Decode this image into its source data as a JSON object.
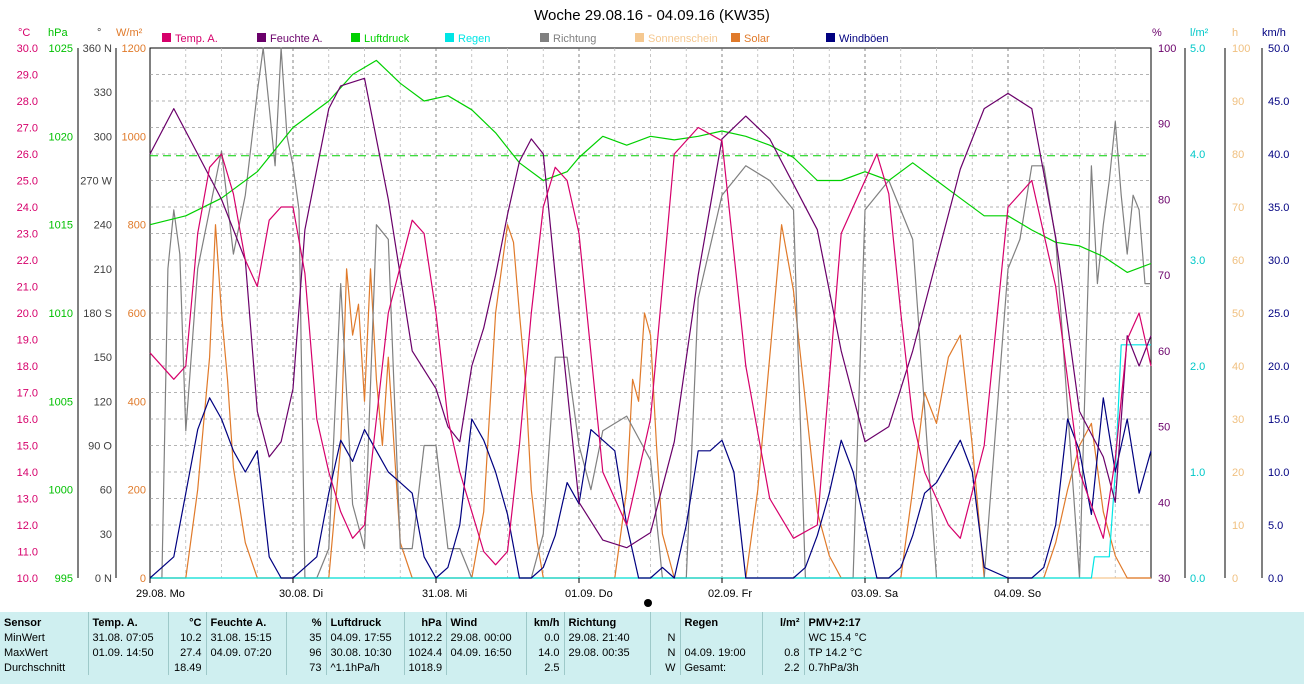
{
  "title": "Woche 29.08.16 - 04.09.16 (KW35)",
  "legend": [
    {
      "label": "Temp. A.",
      "color": "#d6006b"
    },
    {
      "label": "Feuchte A.",
      "color": "#6a006a"
    },
    {
      "label": "Luftdruck",
      "color": "#00d000"
    },
    {
      "label": "Regen",
      "color": "#00e5e5"
    },
    {
      "label": "Richtung",
      "color": "#808080"
    },
    {
      "label": "Sonnenschein",
      "color": "#f5c890"
    },
    {
      "label": "Solar",
      "color": "#e07a2a"
    },
    {
      "label": "Windböen",
      "color": "#000080"
    }
  ],
  "left_axes": [
    {
      "unit": "°C",
      "color": "#d6006b",
      "ticks": [
        "30.0",
        "29.0",
        "28.0",
        "27.0",
        "26.0",
        "25.0",
        "24.0",
        "23.0",
        "22.0",
        "21.0",
        "20.0",
        "19.0",
        "18.0",
        "17.0",
        "16.0",
        "15.0",
        "14.0",
        "13.0",
        "12.0",
        "11.0",
        "10.0"
      ]
    },
    {
      "unit": "hPa",
      "color": "#00c000",
      "ticks": [
        "1025",
        "1020",
        "1015",
        "1010",
        "1005",
        "1000",
        "995"
      ]
    },
    {
      "unit": "°",
      "color": "#404040",
      "ticks": [
        "360 N",
        "330",
        "300",
        "270 W",
        "240",
        "210",
        "180 S",
        "150",
        "120",
        "90 O",
        "60",
        "30",
        "0 N"
      ]
    },
    {
      "unit": "W/m²",
      "color": "#e07a2a",
      "ticks": [
        "1200",
        "1000",
        "800",
        "600",
        "400",
        "200",
        "0"
      ]
    }
  ],
  "right_axes": [
    {
      "unit": "%",
      "color": "#6a006a",
      "ticks": [
        "100",
        "90",
        "80",
        "70",
        "60",
        "50",
        "40",
        "30"
      ]
    },
    {
      "unit": "l/m²",
      "color": "#00c8c8",
      "ticks": [
        "5.0",
        "4.0",
        "3.0",
        "2.0",
        "1.0",
        "0.0"
      ]
    },
    {
      "unit": "h",
      "color": "#f0c080",
      "ticks": [
        "100",
        "90",
        "80",
        "70",
        "60",
        "50",
        "40",
        "30",
        "20",
        "10",
        "0"
      ]
    },
    {
      "unit": "km/h",
      "color": "#000080",
      "ticks": [
        "50.0",
        "45.0",
        "40.0",
        "35.0",
        "30.0",
        "25.0",
        "20.0",
        "15.0",
        "10.0",
        "5.0",
        "0.0"
      ]
    }
  ],
  "day_labels": [
    "29.08. Mo",
    "30.08. Di",
    "31.08. Mi",
    "01.09. Do",
    "02.09. Fr",
    "03.09. Sa",
    "04.09. So"
  ],
  "chart_data": {
    "type": "line",
    "x_unit": "hours since 29.08. 00:00",
    "x_range": [
      0,
      168
    ],
    "grid": true,
    "series": [
      {
        "name": "Temp. A.",
        "unit": "°C",
        "color": "#d6006b",
        "ylim": [
          10,
          30
        ],
        "x": [
          0,
          4,
          6,
          8,
          10,
          12,
          14,
          16,
          18,
          20,
          22,
          24,
          26,
          28,
          30,
          32,
          34,
          36,
          40,
          44,
          46,
          48,
          50,
          52,
          54,
          56,
          58,
          60,
          62,
          64,
          66,
          68,
          70,
          72,
          76,
          80,
          84,
          88,
          92,
          96,
          100,
          104,
          108,
          112,
          116,
          120,
          122,
          124,
          126,
          128,
          130,
          132,
          134,
          136,
          140,
          144,
          148,
          152,
          156,
          160,
          162,
          164,
          166,
          168
        ],
        "y": [
          18.5,
          17.5,
          18.0,
          23.0,
          25.5,
          26.0,
          24.5,
          22.0,
          21.0,
          23.5,
          24.0,
          24.0,
          21.5,
          16.0,
          14.0,
          12.5,
          11.5,
          12.0,
          20.0,
          23.5,
          23.0,
          20.0,
          16.0,
          14.0,
          12.5,
          11.0,
          10.5,
          11.0,
          15.0,
          20.0,
          24.0,
          25.5,
          25.0,
          23.0,
          14.0,
          12.0,
          16.0,
          26.0,
          27.0,
          26.5,
          18.0,
          13.0,
          11.5,
          12.0,
          23.0,
          25.0,
          26.0,
          24.5,
          20.0,
          16.0,
          14.0,
          13.0,
          12.0,
          11.5,
          15.0,
          24.0,
          25.0,
          21.0,
          14.0,
          11.5,
          14.5,
          19.0,
          20.0,
          18.0
        ]
      },
      {
        "name": "Feuchte A.",
        "unit": "%",
        "color": "#6a006a",
        "ylim": [
          30,
          100
        ],
        "x": [
          0,
          4,
          8,
          12,
          16,
          18,
          20,
          22,
          24,
          26,
          28,
          30,
          32,
          36,
          40,
          44,
          48,
          50,
          52,
          54,
          56,
          58,
          60,
          62,
          64,
          66,
          68,
          72,
          76,
          80,
          84,
          88,
          92,
          96,
          100,
          104,
          108,
          112,
          116,
          120,
          124,
          128,
          132,
          136,
          140,
          144,
          148,
          152,
          156,
          160,
          162,
          164,
          166,
          168
        ],
        "y": [
          86,
          92,
          86,
          80,
          72,
          52,
          46,
          48,
          55,
          76,
          84,
          92,
          95,
          96,
          80,
          60,
          55,
          50,
          48,
          58,
          63,
          70,
          78,
          85,
          88,
          86,
          70,
          40,
          35,
          34,
          36,
          48,
          70,
          88,
          91,
          88,
          82,
          76,
          60,
          48,
          50,
          60,
          72,
          84,
          92,
          94,
          92,
          75,
          52,
          46,
          40,
          62,
          58,
          62
        ]
      },
      {
        "name": "Luftdruck",
        "unit": "hPa",
        "color": "#00d000",
        "ylim": [
          995,
          1025
        ],
        "x": [
          0,
          6,
          12,
          18,
          24,
          30,
          34,
          38,
          42,
          46,
          50,
          54,
          58,
          62,
          66,
          70,
          72,
          76,
          80,
          84,
          88,
          92,
          96,
          100,
          104,
          108,
          112,
          116,
          120,
          124,
          128,
          132,
          136,
          140,
          144,
          148,
          152,
          156,
          160,
          164,
          168
        ],
        "y": [
          1015.0,
          1015.5,
          1016.5,
          1018.0,
          1020.5,
          1022.0,
          1023.5,
          1024.3,
          1023.0,
          1022.0,
          1022.3,
          1021.5,
          1020.2,
          1018.5,
          1017.5,
          1018.0,
          1018.8,
          1020.0,
          1019.5,
          1020.0,
          1019.8,
          1020.0,
          1020.3,
          1020.0,
          1019.5,
          1018.8,
          1017.5,
          1017.5,
          1018.0,
          1017.5,
          1018.5,
          1017.5,
          1016.5,
          1015.5,
          1015.5,
          1014.7,
          1014.0,
          1013.8,
          1013.2,
          1012.3,
          1012.8
        ]
      },
      {
        "name": "Regen",
        "unit": "l/m²",
        "color": "#00e5e5",
        "ylim": [
          0,
          5
        ],
        "x": [
          0,
          158,
          158.5,
          161,
          162,
          163,
          168
        ],
        "y": [
          0,
          0,
          0.2,
          0.2,
          1.0,
          2.2,
          2.2
        ]
      },
      {
        "name": "Richtung",
        "unit": "°",
        "color": "#808080",
        "ylim": [
          0,
          360
        ],
        "x": [
          0,
          2,
          3,
          4,
          5,
          6,
          8,
          10,
          12,
          14,
          16,
          18,
          19,
          20,
          21,
          22,
          23,
          24,
          25,
          26,
          28,
          30,
          32,
          34,
          36,
          38,
          40,
          42,
          44,
          46,
          48,
          50,
          52,
          54,
          56,
          58,
          60,
          62,
          64,
          66,
          68,
          70,
          72,
          74,
          76,
          80,
          84,
          86,
          88,
          90,
          92,
          96,
          100,
          104,
          108,
          110,
          112,
          114,
          116,
          118,
          120,
          124,
          128,
          132,
          136,
          140,
          144,
          146,
          148,
          150,
          152,
          156,
          158,
          159,
          160,
          161,
          162,
          163,
          164,
          165,
          166,
          167,
          168
        ],
        "y": [
          0,
          0,
          210,
          250,
          220,
          100,
          210,
          250,
          290,
          220,
          260,
          330,
          360,
          320,
          280,
          360,
          300,
          280,
          250,
          0,
          0,
          20,
          200,
          50,
          20,
          240,
          230,
          20,
          20,
          90,
          90,
          20,
          20,
          0,
          0,
          0,
          0,
          0,
          0,
          30,
          150,
          150,
          90,
          60,
          100,
          110,
          80,
          0,
          0,
          0,
          190,
          260,
          280,
          270,
          250,
          0,
          0,
          0,
          0,
          0,
          250,
          270,
          230,
          0,
          0,
          0,
          210,
          230,
          280,
          280,
          230,
          0,
          280,
          200,
          240,
          270,
          310,
          260,
          220,
          260,
          250,
          200,
          200
        ]
      },
      {
        "name": "Sonnenschein",
        "unit": "h",
        "color": "#f5c890",
        "ylim": [
          0,
          100
        ],
        "x": [
          0,
          168
        ],
        "y": [
          0,
          0
        ]
      },
      {
        "name": "Solar",
        "unit": "W/m²",
        "color": "#e07a2a",
        "ylim": [
          0,
          1200
        ],
        "x": [
          0,
          6,
          8,
          9,
          10,
          11,
          12,
          13,
          14,
          16,
          18,
          20,
          24,
          30,
          32,
          33,
          34,
          35,
          36,
          37,
          38,
          39,
          40,
          42,
          44,
          48,
          54,
          56,
          58,
          60,
          61,
          62,
          63,
          64,
          65,
          66,
          68,
          72,
          78,
          80,
          81,
          82,
          83,
          84,
          85,
          86,
          88,
          92,
          96,
          100,
          102,
          104,
          106,
          108,
          110,
          112,
          114,
          116,
          120,
          126,
          128,
          130,
          132,
          134,
          136,
          138,
          140,
          144,
          150,
          152,
          154,
          156,
          158,
          160,
          162,
          164,
          168
        ],
        "y": [
          0,
          0,
          200,
          350,
          500,
          800,
          600,
          450,
          250,
          80,
          0,
          0,
          0,
          0,
          300,
          700,
          550,
          620,
          400,
          700,
          450,
          300,
          500,
          80,
          0,
          0,
          0,
          150,
          600,
          800,
          760,
          600,
          450,
          200,
          80,
          0,
          0,
          0,
          0,
          200,
          450,
          400,
          600,
          550,
          300,
          100,
          0,
          0,
          0,
          0,
          200,
          500,
          800,
          650,
          400,
          150,
          50,
          0,
          0,
          0,
          200,
          420,
          350,
          500,
          550,
          300,
          0,
          0,
          0,
          80,
          200,
          300,
          350,
          150,
          50,
          0,
          0
        ]
      },
      {
        "name": "Windböen",
        "unit": "km/h",
        "color": "#000080",
        "ylim": [
          0,
          50
        ],
        "x": [
          0,
          2,
          4,
          6,
          8,
          10,
          12,
          14,
          16,
          18,
          20,
          22,
          24,
          26,
          28,
          30,
          32,
          34,
          36,
          38,
          40,
          42,
          44,
          46,
          48,
          50,
          52,
          54,
          56,
          58,
          60,
          62,
          64,
          66,
          68,
          70,
          72,
          74,
          76,
          78,
          80,
          82,
          84,
          86,
          88,
          90,
          92,
          94,
          96,
          98,
          100,
          102,
          104,
          106,
          108,
          110,
          112,
          114,
          116,
          118,
          120,
          122,
          124,
          126,
          128,
          130,
          132,
          134,
          136,
          138,
          140,
          144,
          148,
          150,
          152,
          154,
          156,
          158,
          160,
          162,
          164,
          166,
          168
        ],
        "y": [
          0,
          1,
          2,
          8,
          14,
          17,
          15,
          12,
          10,
          12,
          2,
          0,
          0,
          1,
          2,
          8,
          13,
          11,
          14,
          12,
          10,
          9,
          8,
          2,
          0,
          1,
          5,
          15,
          13,
          10,
          6,
          0,
          0,
          1,
          4,
          9,
          7,
          14,
          13,
          12,
          5,
          0,
          0,
          1,
          0,
          5,
          12,
          12,
          13,
          10,
          0,
          0,
          0,
          0,
          0,
          1,
          4,
          8,
          13,
          10,
          5,
          0,
          0,
          1,
          4,
          8,
          9,
          11,
          13,
          10,
          1,
          0,
          0,
          1,
          5,
          15,
          12,
          6,
          17,
          10,
          15,
          8,
          12
        ]
      }
    ]
  },
  "stats": {
    "headers": [
      "Sensor",
      "Temp. A.",
      "°C",
      "Feuchte A.",
      "%",
      "Luftdruck",
      "hPa",
      "Wind",
      "km/h",
      "Richtung",
      "",
      "Regen",
      "l/m²",
      "PMV+2:17"
    ],
    "rows": [
      [
        "MinWert",
        "31.08.  07:05",
        "10.2",
        "31.08.  15:15",
        "35",
        "04.09.  17:55",
        "1012.2",
        "29.08.  00:00",
        "0.0",
        "29.08.  21:40",
        "N",
        "",
        "",
        "WC 15.4 °C"
      ],
      [
        "MaxWert",
        "01.09.  14:50",
        "27.4",
        "04.09.  07:20",
        "96",
        "30.08.  10:30",
        "1024.4",
        "04.09.  16:50",
        "14.0",
        "29.08.  00:35",
        "N",
        "04.09.  19:00",
        "0.8",
        "TP 14.2 °C"
      ],
      [
        "Durchschnitt",
        "",
        "18.49",
        "",
        "73",
        "^1.1hPa/h",
        "1018.9",
        "",
        "2.5",
        "",
        "W",
        "Gesamt:",
        "2.2",
        "0.7hPa/3h"
      ]
    ]
  }
}
